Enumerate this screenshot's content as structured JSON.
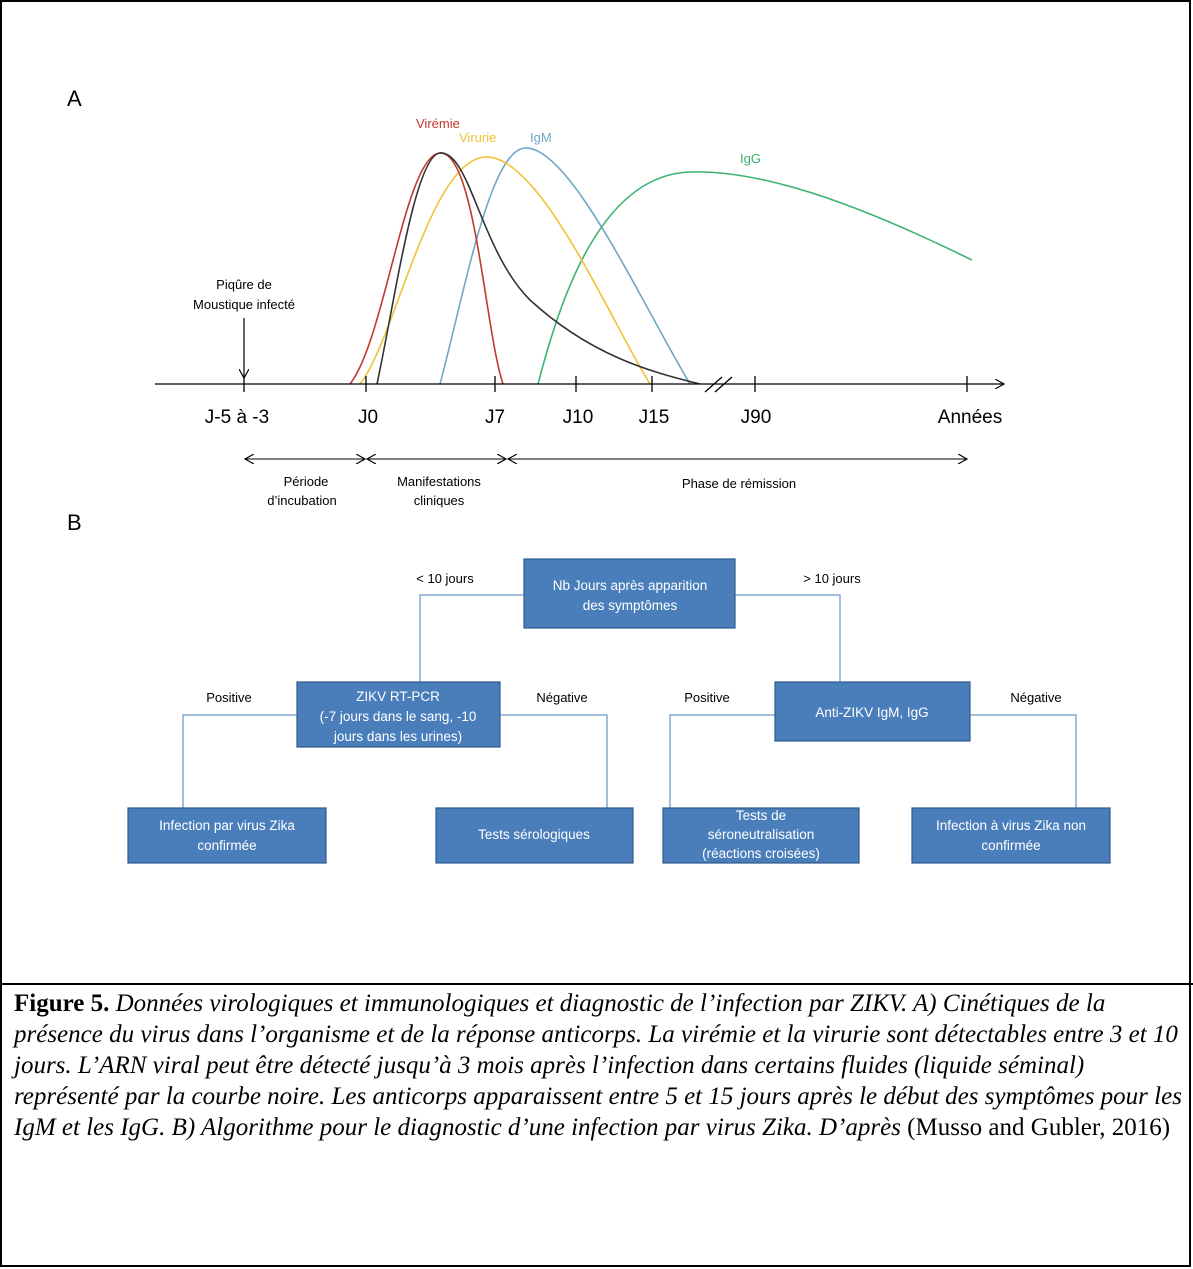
{
  "panel_a": {
    "label": "A",
    "curve_labels": {
      "viremie": "Virémie",
      "virurie": "Virurie",
      "igm": "IgM",
      "igg": "IgG"
    },
    "bite_label_line1": "Piqûre de",
    "bite_label_line2": "Moustique infecté",
    "ticks": [
      "J-5 à -3",
      "J0",
      "J7",
      "J10",
      "J15",
      "J90",
      "Années"
    ],
    "phases": {
      "incubation_line1": "Période",
      "incubation_line2": "d’incubation",
      "clinical_line1": "Manifestations",
      "clinical_line2": "cliniques",
      "remission": "Phase de rémission"
    },
    "colors": {
      "viremie": "#c0392b",
      "virurie": "#f1c232",
      "igm": "#6fa8c6",
      "igg": "#3cb371",
      "rna": "#333333"
    }
  },
  "panel_b": {
    "label": "B",
    "root_line1": "Nb Jours après apparition",
    "root_line2": "des symptômes",
    "branch_left": "< 10 jours",
    "branch_right": "> 10 jours",
    "pcr_line1": "ZIKV RT-PCR",
    "pcr_line2": "(-7 jours dans le sang, -10",
    "pcr_line3": "jours dans les urines)",
    "serology": "Anti-ZIKV IgM, IgG",
    "positive_1": "Positive",
    "negative_1": "Négative",
    "positive_2": "Positive",
    "negative_2": "Négative",
    "leaf1_line1": "Infection par virus Zika",
    "leaf1_line2": "confirmée",
    "leaf2": "Tests sérologiques",
    "leaf3_line1": "Tests de",
    "leaf3_line2": "séroneutralisation",
    "leaf3_line3": "(réactions croisées)",
    "leaf4_line1": "Infection à virus Zika non",
    "leaf4_line2": "confirmée",
    "box_color": "#4a7ebb"
  },
  "caption": {
    "label": "Figure 5.",
    "text": " Données virologiques et immunologiques et diagnostic de l’infection par ZIKV. A) Cinétiques de la présence du virus dans l’organisme et de la réponse anticorps. La virémie et la virurie sont détectables entre 3 et 10 jours. L’ARN viral peut être détecté jusqu’à 3 mois après l’infection dans certains fluides (liquide séminal) représenté par la courbe noire. Les anticorps apparaissent entre 5 et 15 jours après le début des symptômes pour les IgM et les IgG. B) Algorithme pour le diagnostic d’une infection par virus Zika. D’après",
    "reference": " (Musso and Gubler, 2016)"
  }
}
